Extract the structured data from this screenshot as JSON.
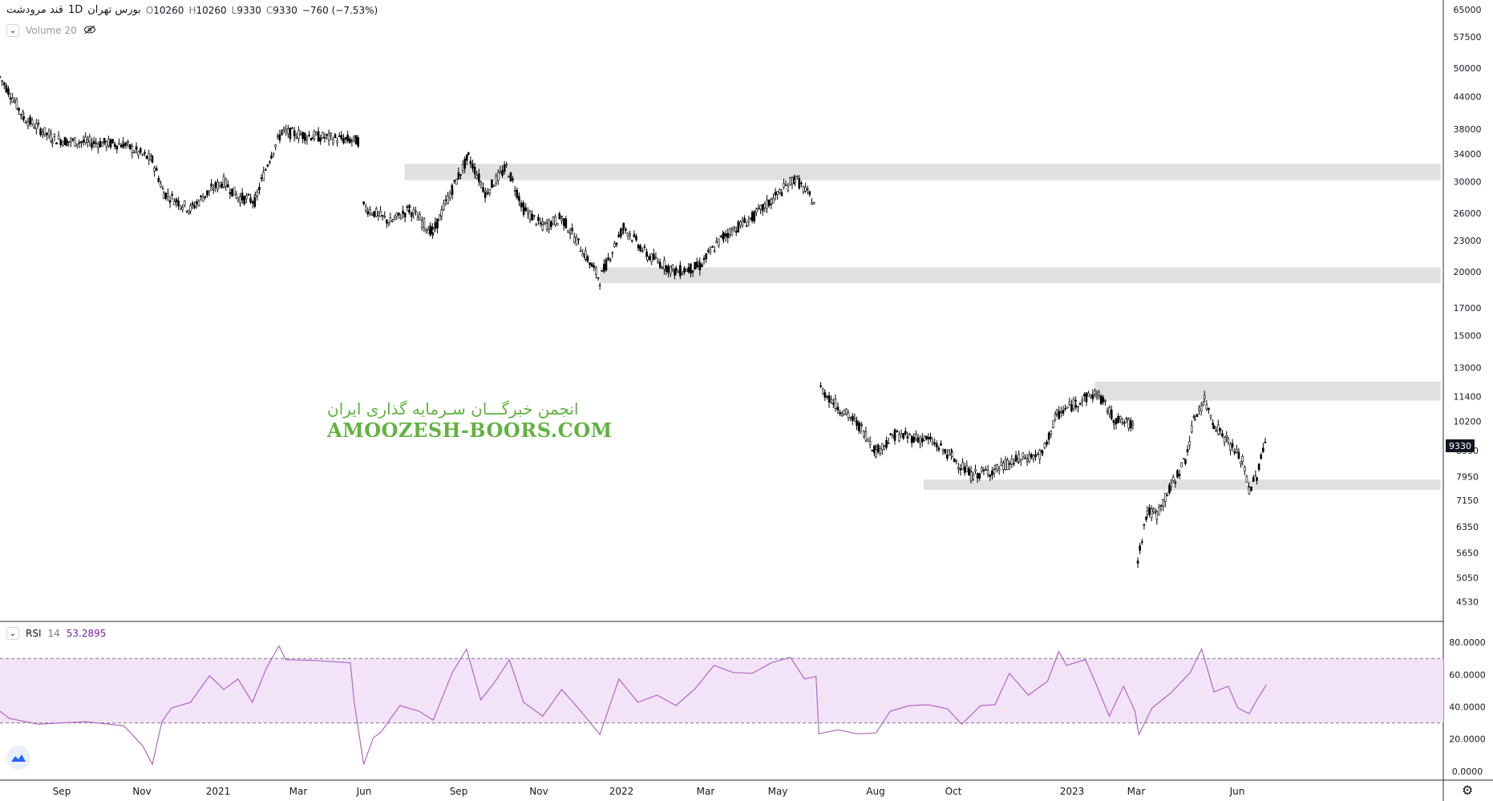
{
  "legend": {
    "symbol": "قند مرودشت",
    "interval": "1D",
    "exchange": "بورس تهران",
    "open_label": "O",
    "open": "10260",
    "high_label": "H",
    "high": "10260",
    "low_label": "L",
    "low": "9330",
    "close_label": "C",
    "close": "9330",
    "change": "−760 (−7.53%)"
  },
  "volume_label": "Volume 20",
  "rsi": {
    "label": "RSI",
    "length": "14",
    "value": "53.2895"
  },
  "watermark": {
    "persian": "انجمن خبرگـــان سـرمایه گذاری ایران",
    "latin": "AMOOZESH-BOORS.COM"
  },
  "last_price_tag": "9330",
  "colors": {
    "candle": "#000000",
    "zone": "#e0e0e0",
    "rsi_line": "#b266c6",
    "rsi_band": "#f2e4f6"
  },
  "icons": [
    "chevron-down-icon",
    "eye-off-icon",
    "tradingview-logo-icon",
    "gear-icon"
  ],
  "chart_data": [
    {
      "type": "candlestick",
      "title": "",
      "x_axis_labels": [
        "Sep",
        "Nov",
        "2021",
        "Mar",
        "Jun",
        "Sep",
        "Nov",
        "2022",
        "Mar",
        "May",
        "Aug",
        "Oct",
        "2023",
        "Mar",
        "Jun"
      ],
      "y_axis_labels": [
        "65000",
        "57500",
        "50000",
        "44000",
        "38000",
        "34000",
        "30000",
        "26000",
        "23000",
        "20000",
        "17000",
        "15000",
        "13000",
        "11400",
        "10200",
        "8950",
        "7950",
        "7150",
        "6350",
        "5650",
        "5050",
        "4530"
      ],
      "scale": "log",
      "ylim": [
        4300,
        66000
      ],
      "series": [
        {
          "points": [
            [
              0,
              48000
            ],
            [
              25,
              40000
            ],
            [
              55,
              36500
            ],
            [
              70,
              36000
            ],
            [
              130,
              35500
            ],
            [
              160,
              33000
            ],
            [
              172,
              28500
            ],
            [
              200,
              26500
            ],
            [
              222,
              29000
            ],
            [
              235,
              30000
            ],
            [
              250,
              28000
            ],
            [
              268,
              27500
            ],
            [
              285,
              34000
            ],
            [
              296,
              37500
            ],
            [
              330,
              36800
            ],
            [
              378,
              36000
            ]
          ]
        },
        {
          "points": [
            [
              382,
              26800
            ],
            [
              410,
              25000
            ],
            [
              430,
              26500
            ],
            [
              455,
              23800
            ],
            [
              475,
              29000
            ],
            [
              492,
              33500
            ],
            [
              510,
              28500
            ],
            [
              532,
              32000
            ],
            [
              550,
              26500
            ],
            [
              570,
              24500
            ],
            [
              590,
              25500
            ],
            [
              615,
              21500
            ],
            [
              630,
              19300
            ],
            [
              655,
              24500
            ],
            [
              680,
              21500
            ],
            [
              710,
              20000
            ],
            [
              735,
              20500
            ],
            [
              760,
              23500
            ],
            [
              790,
              25500
            ],
            [
              810,
              27500
            ],
            [
              835,
              30500
            ],
            [
              857,
              27000
            ]
          ]
        },
        {
          "points": [
            [
              862,
              11800
            ],
            [
              880,
              10900
            ],
            [
              905,
              9900
            ],
            [
              920,
              8900
            ],
            [
              940,
              9600
            ],
            [
              975,
              9400
            ],
            [
              1000,
              8700
            ],
            [
              1020,
              8000
            ],
            [
              1045,
              8200
            ],
            [
              1070,
              8600
            ],
            [
              1095,
              8800
            ],
            [
              1110,
              10500
            ],
            [
              1130,
              11100
            ],
            [
              1152,
              11600
            ],
            [
              1170,
              10300
            ],
            [
              1192,
              10000
            ]
          ]
        },
        {
          "points": [
            [
              1195,
              5500
            ],
            [
              1205,
              6800
            ],
            [
              1215,
              6700
            ],
            [
              1230,
              7600
            ],
            [
              1245,
              8600
            ],
            [
              1255,
              10400
            ],
            [
              1265,
              11200
            ],
            [
              1275,
              10100
            ],
            [
              1290,
              9300
            ],
            [
              1305,
              8500
            ],
            [
              1312,
              7500
            ],
            [
              1320,
              8000
            ],
            [
              1330,
              9500
            ]
          ]
        }
      ],
      "zones": [
        {
          "from_x": 425,
          "to_x": 1513,
          "low": 30200,
          "high": 32500
        },
        {
          "from_x": 630,
          "to_x": 1513,
          "low": 19000,
          "high": 20400
        },
        {
          "from_x": 1150,
          "to_x": 1513,
          "low": 11200,
          "high": 12200
        },
        {
          "from_x": 970,
          "to_x": 1513,
          "low": 7500,
          "high": 7850
        }
      ]
    },
    {
      "type": "line",
      "title": "",
      "y_axis_labels": [
        "80.0000",
        "60.0000",
        "40.0000",
        "20.0000",
        "0.0000"
      ],
      "ylim": [
        -4,
        88
      ],
      "band": [
        30,
        70
      ],
      "series": [
        {
          "name": "RSI 14",
          "values": [
            [
              0,
              38
            ],
            [
              10,
              32
            ],
            [
              40,
              30
            ],
            [
              90,
              30
            ],
            [
              130,
              29
            ],
            [
              150,
              15
            ],
            [
              160,
              5
            ],
            [
              170,
              30
            ],
            [
              180,
              40
            ],
            [
              200,
              42
            ],
            [
              220,
              60
            ],
            [
              235,
              50
            ],
            [
              250,
              58
            ],
            [
              265,
              42
            ],
            [
              280,
              65
            ],
            [
              293,
              77
            ],
            [
              300,
              70
            ],
            [
              330,
              68
            ],
            [
              368,
              68
            ],
            [
              372,
              42
            ],
            [
              382,
              5
            ],
            [
              392,
              20
            ],
            [
              400,
              25
            ],
            [
              420,
              40
            ],
            [
              440,
              38
            ],
            [
              455,
              31
            ],
            [
              475,
              62
            ],
            [
              490,
              75
            ],
            [
              505,
              45
            ],
            [
              520,
              55
            ],
            [
              535,
              70
            ],
            [
              550,
              42
            ],
            [
              570,
              35
            ],
            [
              590,
              50
            ],
            [
              610,
              38
            ],
            [
              630,
              22
            ],
            [
              650,
              58
            ],
            [
              670,
              42
            ],
            [
              690,
              48
            ],
            [
              710,
              40
            ],
            [
              730,
              52
            ],
            [
              750,
              65
            ],
            [
              770,
              62
            ],
            [
              790,
              60
            ],
            [
              810,
              68
            ],
            [
              830,
              70
            ],
            [
              845,
              58
            ],
            [
              857,
              58
            ],
            [
              860,
              24
            ],
            [
              880,
              25
            ],
            [
              900,
              24
            ],
            [
              920,
              23
            ],
            [
              935,
              38
            ],
            [
              955,
              40
            ],
            [
              975,
              42
            ],
            [
              995,
              38
            ],
            [
              1010,
              30
            ],
            [
              1030,
              40
            ],
            [
              1045,
              42
            ],
            [
              1060,
              60
            ],
            [
              1080,
              48
            ],
            [
              1100,
              55
            ],
            [
              1112,
              75
            ],
            [
              1120,
              65
            ],
            [
              1140,
              70
            ],
            [
              1150,
              55
            ],
            [
              1165,
              35
            ],
            [
              1180,
              52
            ],
            [
              1192,
              38
            ],
            [
              1196,
              22
            ],
            [
              1210,
              40
            ],
            [
              1230,
              48
            ],
            [
              1250,
              62
            ],
            [
              1262,
              75
            ],
            [
              1275,
              50
            ],
            [
              1290,
              52
            ],
            [
              1300,
              40
            ],
            [
              1312,
              35
            ],
            [
              1320,
              45
            ],
            [
              1330,
              53
            ]
          ]
        }
      ]
    }
  ]
}
